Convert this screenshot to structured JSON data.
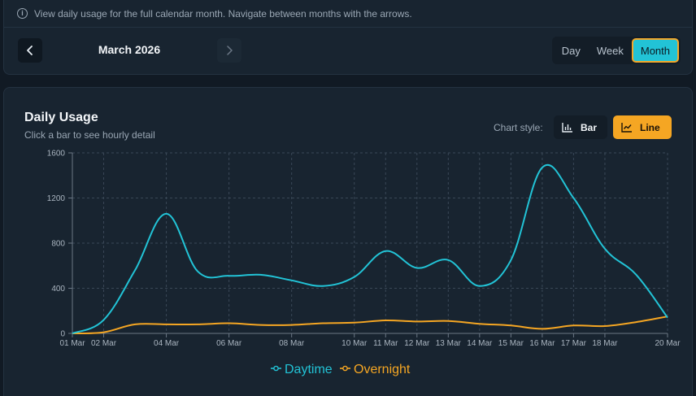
{
  "info": {
    "icon": "info-icon",
    "text": "View daily usage for the full calendar month. Navigate between months with the arrows."
  },
  "nav": {
    "prev_icon": "chevron-left-icon",
    "next_icon": "chevron-right-icon",
    "month_label": "March 2026"
  },
  "view_modes": {
    "items": [
      "Day",
      "Week",
      "Month"
    ],
    "selected": "Month"
  },
  "chart_panel": {
    "title": "Daily Usage",
    "subtitle": "Click a bar to see hourly detail",
    "style_label": "Chart style:",
    "bar_label": "Bar",
    "line_label": "Line",
    "selected_style": "Line"
  },
  "colors": {
    "daytime": "#22c3d6",
    "overnight": "#f5a623",
    "accent_border": "#f3a72a"
  },
  "chart_data": {
    "type": "line",
    "x": [
      "01 Mar",
      "02 Mar",
      "03 Mar",
      "04 Mar",
      "05 Mar",
      "06 Mar",
      "07 Mar",
      "08 Mar",
      "09 Mar",
      "10 Mar",
      "11 Mar",
      "12 Mar",
      "13 Mar",
      "14 Mar",
      "15 Mar",
      "16 Mar",
      "17 Mar",
      "18 Mar",
      "19 Mar",
      "20 Mar"
    ],
    "x_tick_labels": [
      "01 Mar",
      "02 Mar",
      "04 Mar",
      "06 Mar",
      "08 Mar",
      "10 Mar",
      "11 Mar",
      "12 Mar",
      "13 Mar",
      "14 Mar",
      "15 Mar",
      "16 Mar",
      "17 Mar",
      "18 Mar",
      "20 Mar"
    ],
    "y_ticks": [
      0,
      400,
      800,
      1200,
      1600
    ],
    "ylim": [
      0,
      1600
    ],
    "grid": true,
    "legend": "bottom-center",
    "series": [
      {
        "name": "Daytime",
        "values": [
          0,
          120,
          560,
          1060,
          550,
          510,
          520,
          470,
          420,
          500,
          730,
          580,
          650,
          420,
          650,
          1470,
          1200,
          750,
          520,
          140
        ]
      },
      {
        "name": "Overnight",
        "values": [
          0,
          10,
          80,
          80,
          80,
          90,
          75,
          75,
          90,
          95,
          115,
          105,
          110,
          85,
          70,
          40,
          70,
          65,
          100,
          150
        ]
      }
    ]
  }
}
